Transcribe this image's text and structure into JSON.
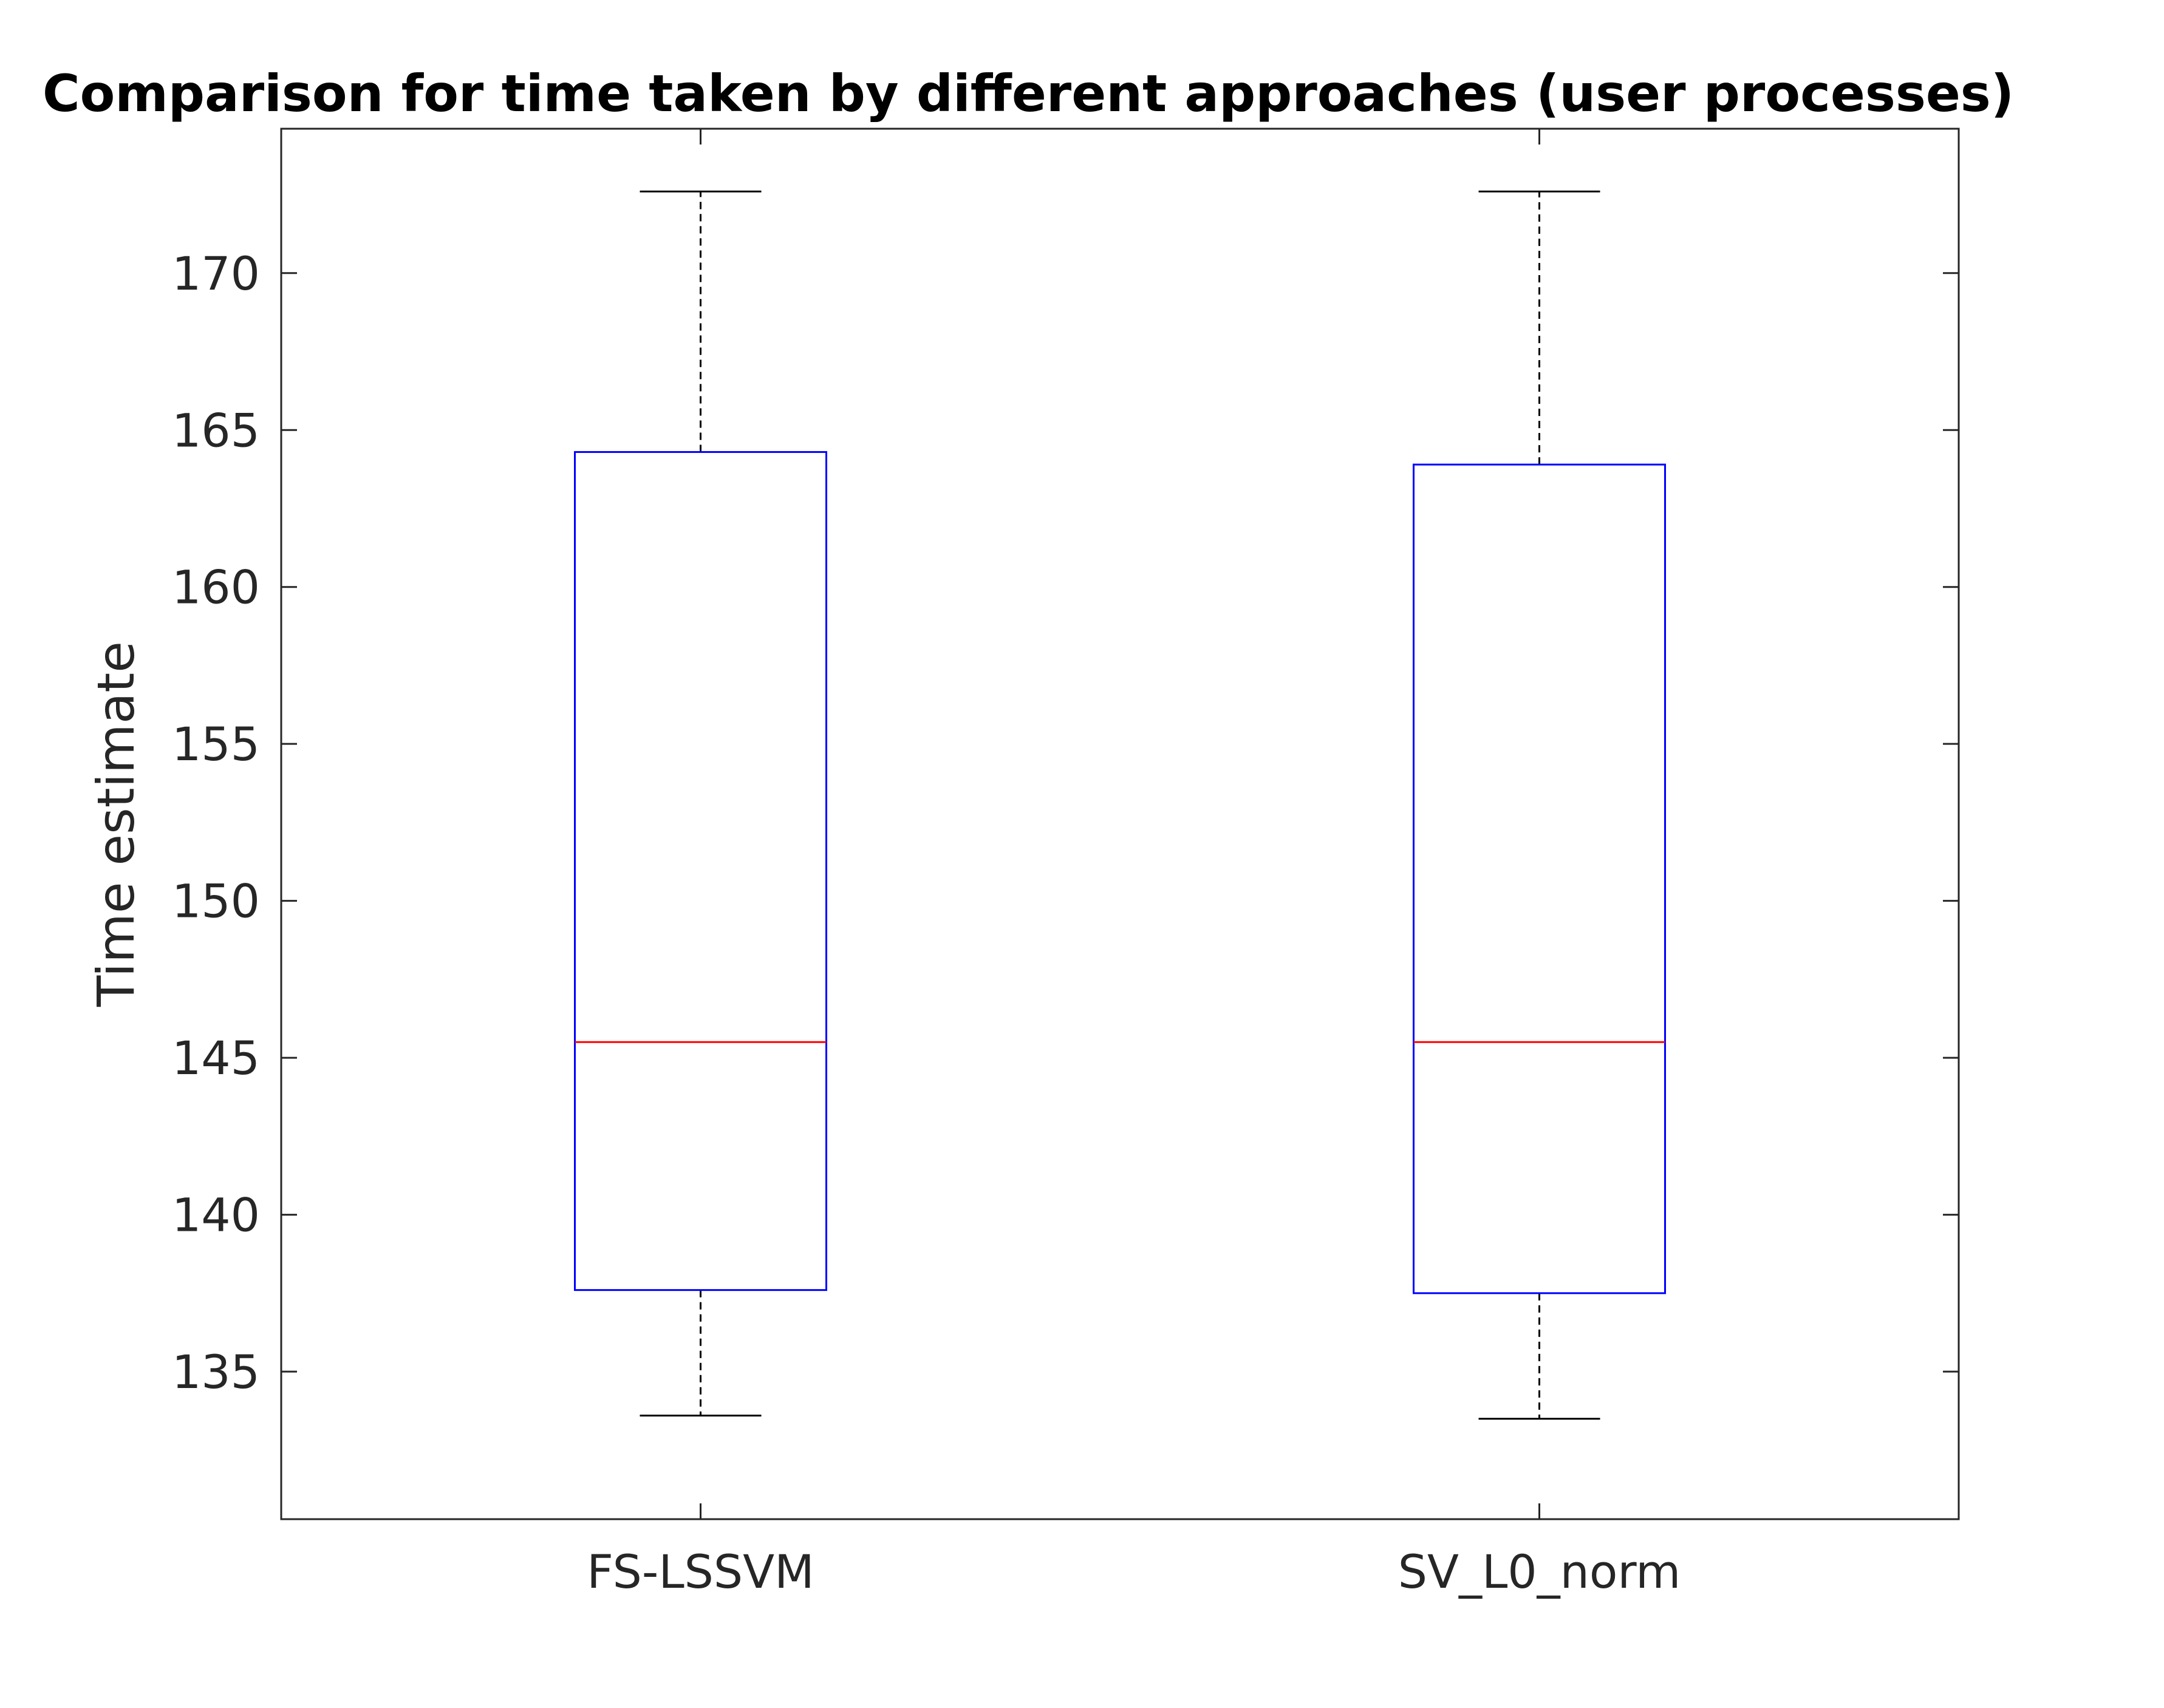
{
  "chart_data": {
    "type": "box",
    "title": "Comparison for time taken by different approaches (user processes)",
    "xlabel": "",
    "ylabel": "Time estimate",
    "ylim": [
      130.3,
      174.6
    ],
    "yticks": [
      135,
      140,
      145,
      150,
      155,
      160,
      165,
      170
    ],
    "grid": false,
    "categories": [
      "FS-LSSVM",
      "SV_L0_norm"
    ],
    "boxes": [
      {
        "category": "FS-LSSVM",
        "whisker_low": 133.6,
        "q1": 137.6,
        "median": 145.5,
        "q3": 164.3,
        "whisker_high": 172.6
      },
      {
        "category": "SV_L0_norm",
        "whisker_low": 133.5,
        "q1": 137.5,
        "median": 145.5,
        "q3": 163.9,
        "whisker_high": 172.6
      }
    ],
    "colors": {
      "box": "#0000ff",
      "median": "#ff0000",
      "whisker": "#000000",
      "axes": "#262626"
    }
  }
}
